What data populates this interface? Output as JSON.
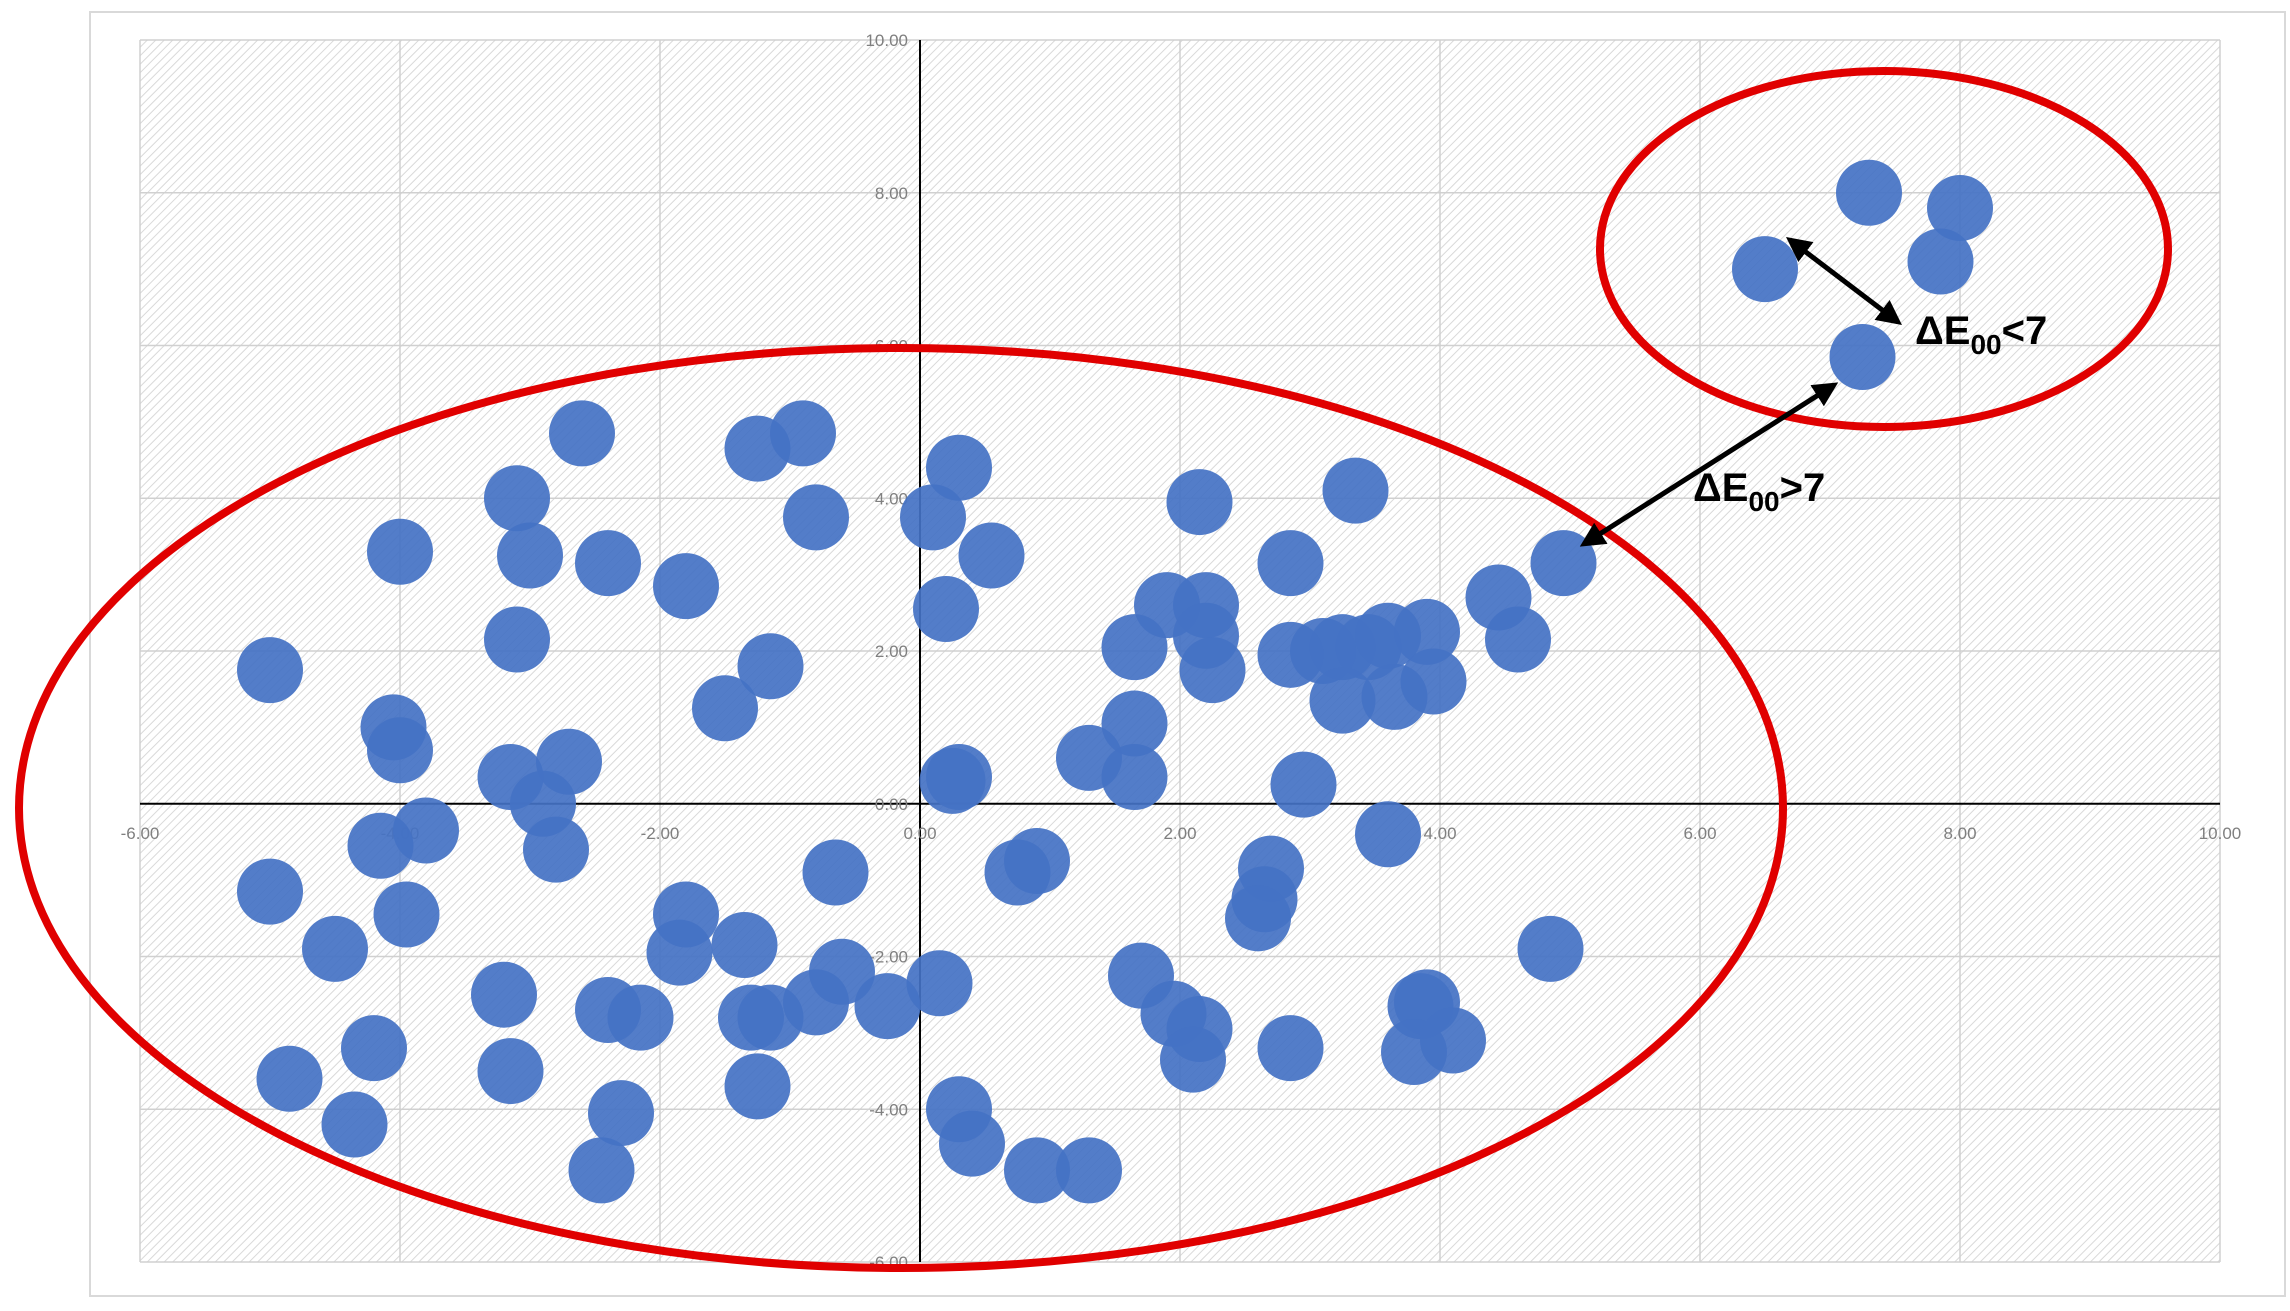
{
  "chart_data": {
    "type": "scatter",
    "title": "",
    "xlabel": "",
    "ylabel": "",
    "xlim": [
      -6,
      10
    ],
    "ylim": [
      -6,
      10
    ],
    "x_ticks": [
      "-6.00",
      "-4.00",
      "-2.00",
      "0.00",
      "2.00",
      "4.00",
      "6.00",
      "8.00",
      "10.00"
    ],
    "y_ticks": [
      "10.00",
      "8.00",
      "6.00",
      "4.00",
      "2.00",
      "0.00",
      "-2.00",
      "-4.00",
      "-6.00"
    ],
    "grid": true,
    "legend": "none",
    "marker_color": "#4472C4",
    "cluster_color": "#E00000",
    "series": [
      {
        "x": [
          -2.6,
          -1.25,
          -0.9,
          -3.1,
          -4.0,
          -3.0,
          -2.4,
          -1.8,
          -0.8,
          0.1,
          0.3,
          0.55,
          0.2,
          -5.0,
          -3.1,
          -4.05,
          -4.0,
          -1.5,
          -1.15,
          -3.15,
          -2.7,
          -2.9,
          -2.8,
          -4.15,
          -3.8,
          -5.0,
          -4.5,
          -3.95,
          -1.8,
          -1.85,
          -1.35,
          -3.2,
          -2.4,
          -2.15,
          -1.3,
          -0.6,
          -0.65,
          -0.25,
          0.15,
          -4.2,
          -4.85,
          -4.35,
          -3.15,
          -2.3,
          -2.45,
          -1.25,
          0.3,
          0.4,
          0.9,
          1.3,
          2.15,
          2.85,
          3.35,
          3.45,
          3.9,
          2.2,
          3.25,
          3.1,
          1.9,
          1.65,
          2.25,
          2.2,
          2.85,
          3.25,
          3.65,
          3.6,
          3.95,
          4.45,
          4.6,
          4.95,
          1.3,
          1.65,
          1.65,
          2.95,
          2.7,
          2.65,
          2.6,
          3.6,
          0.75,
          0.9,
          1.7,
          1.95,
          2.15,
          2.1,
          2.85,
          3.85,
          3.9,
          3.8,
          4.1,
          4.85,
          -1.15,
          -0.8,
          0.3,
          0.25
        ],
        "y": [
          4.85,
          4.65,
          4.85,
          4.0,
          3.3,
          3.25,
          3.15,
          2.85,
          3.75,
          3.75,
          4.4,
          3.25,
          2.55,
          1.75,
          2.15,
          1.0,
          0.7,
          1.25,
          1.8,
          0.35,
          0.55,
          0.0,
          -0.6,
          -0.55,
          -0.35,
          -1.15,
          -1.9,
          -1.45,
          -1.45,
          -1.95,
          -1.85,
          -2.5,
          -2.7,
          -2.8,
          -2.8,
          -2.2,
          -0.9,
          -2.65,
          -2.35,
          -3.2,
          -3.6,
          -4.2,
          -3.5,
          -4.05,
          -4.8,
          -3.7,
          -4.0,
          -4.45,
          -4.8,
          -4.8,
          3.95,
          3.15,
          4.1,
          2.05,
          2.25,
          2.6,
          2.05,
          2.0,
          2.6,
          2.05,
          1.75,
          2.2,
          1.95,
          1.35,
          1.4,
          2.2,
          1.6,
          2.7,
          2.15,
          3.15,
          0.6,
          1.05,
          0.35,
          0.25,
          -0.85,
          -1.25,
          -1.5,
          -0.4,
          -0.9,
          -0.75,
          -2.25,
          -2.75,
          -2.95,
          -3.35,
          -3.2,
          -2.65,
          -2.6,
          -3.25,
          -3.1,
          -1.9,
          -2.8,
          -2.6,
          0.35,
          0.3
        ]
      },
      {
        "x": [
          7.3,
          8.0,
          6.5,
          7.85,
          7.25
        ],
        "y": [
          8.0,
          7.8,
          7.0,
          7.1,
          5.85
        ]
      }
    ],
    "annotations": [
      {
        "text_main": "ΔE",
        "text_sub": "00",
        "text_tail": "<7",
        "from": [
          6.65,
          7.5
        ],
        "to": [
          7.6,
          6.35
        ]
      },
      {
        "text_main": "ΔE",
        "text_sub": "00",
        "text_tail": ">7",
        "from": [
          7.05,
          5.65
        ],
        "to": [
          5.05,
          3.45
        ]
      }
    ]
  }
}
